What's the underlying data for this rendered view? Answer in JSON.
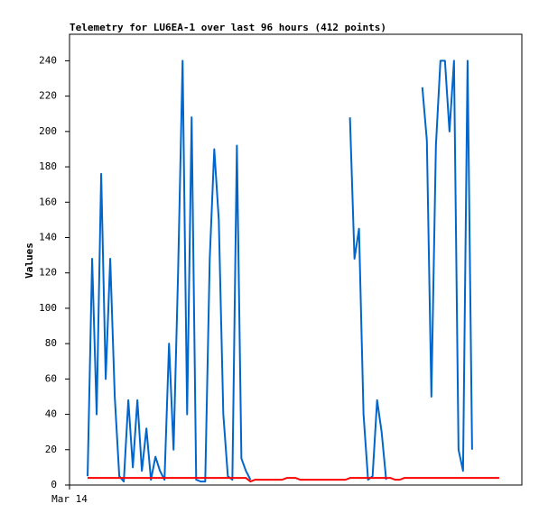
{
  "chart_data": {
    "type": "line",
    "title": "Telemetry for LU6EA-1 over last 96 hours (412 points)",
    "y_label": "Values",
    "categories": [
      "Mar 14",
      null,
      null,
      null,
      null,
      null,
      null,
      null,
      null,
      null,
      null,
      null,
      null,
      null,
      null,
      null,
      null,
      null,
      null,
      null,
      null,
      null,
      null,
      null,
      null,
      null,
      null,
      null,
      null,
      null,
      null,
      null,
      null,
      null,
      null,
      null,
      null,
      null,
      null,
      null,
      null,
      null,
      null,
      null,
      null,
      null,
      null,
      null,
      null,
      null,
      null,
      null,
      null,
      null,
      null,
      null,
      null,
      null,
      null,
      null,
      null,
      null,
      null,
      null,
      null,
      null,
      null,
      null,
      null,
      null,
      null,
      null,
      null,
      null,
      null,
      null,
      null,
      null,
      null,
      null,
      null,
      null,
      null,
      null,
      null,
      null,
      null,
      null,
      null,
      null,
      null,
      null,
      null,
      null,
      null,
      null,
      null,
      null,
      null,
      null,
      null
    ],
    "series": [
      {
        "color": "#0066cc",
        "values": [
          null,
          null,
          null,
          null,
          5,
          128,
          40,
          176,
          60,
          128,
          50,
          5,
          2,
          48,
          10,
          48,
          8,
          32,
          3,
          16,
          8,
          3,
          80,
          20,
          120,
          240,
          40,
          208,
          3,
          2,
          2,
          128,
          190,
          150,
          40,
          5,
          3,
          192,
          15,
          8,
          3,
          null,
          null,
          null,
          null,
          null,
          null,
          null,
          null,
          null,
          null,
          null,
          null,
          null,
          null,
          null,
          null,
          null,
          null,
          null,
          null,
          null,
          208,
          128,
          145,
          40,
          3,
          5,
          48,
          30,
          3,
          null,
          null,
          null,
          null,
          null,
          null,
          null,
          225,
          195,
          50,
          192,
          240,
          240,
          200,
          240,
          20,
          8,
          240,
          20,
          null,
          null,
          null,
          null,
          null,
          null,
          null,
          null,
          null,
          null,
          null
        ]
      },
      {
        "color": "#ff0000",
        "values": [
          null,
          null,
          null,
          null,
          4,
          4,
          4,
          4,
          4,
          4,
          4,
          4,
          4,
          4,
          4,
          4,
          4,
          4,
          4,
          4,
          4,
          4,
          4,
          4,
          4,
          4,
          4,
          4,
          4,
          4,
          4,
          4,
          4,
          4,
          4,
          4,
          4,
          4,
          4,
          4,
          2,
          3,
          3,
          3,
          3,
          3,
          3,
          3,
          4,
          4,
          4,
          3,
          3,
          3,
          3,
          3,
          3,
          3,
          3,
          3,
          3,
          3,
          4,
          4,
          4,
          4,
          4,
          4,
          4,
          4,
          4,
          4,
          3,
          3,
          4,
          4,
          4,
          4,
          4,
          4,
          4,
          4,
          4,
          4,
          4,
          4,
          4,
          4,
          4,
          4,
          4,
          4,
          4,
          4,
          4,
          4,
          null,
          null,
          null,
          null,
          null
        ]
      }
    ],
    "ylim": [
      0,
      255
    ],
    "yticks": [
      0,
      20,
      40,
      60,
      80,
      100,
      120,
      140,
      160,
      180,
      200,
      220,
      240
    ],
    "grid": false
  }
}
